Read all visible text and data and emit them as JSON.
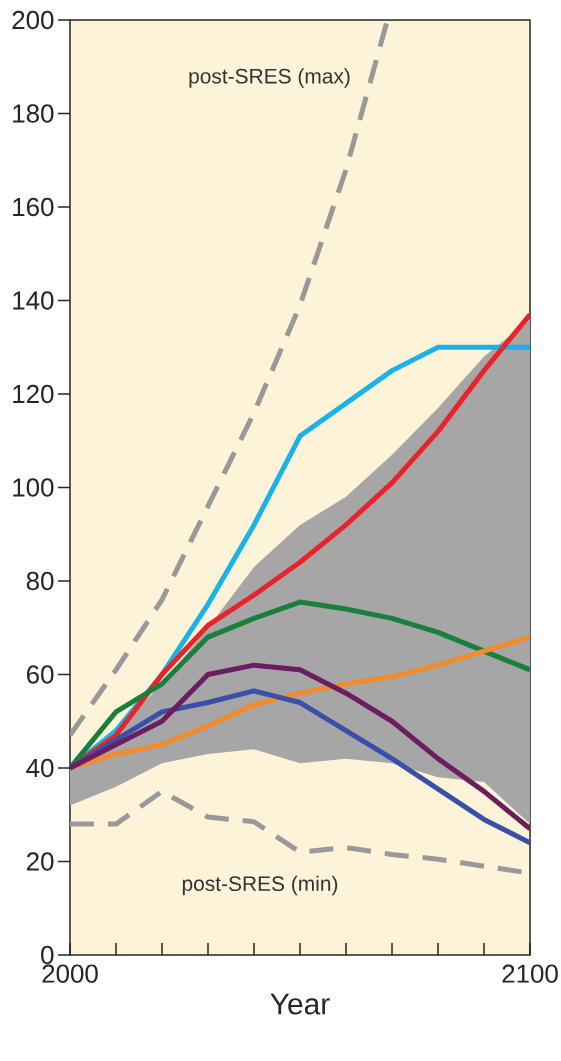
{
  "chart_data": {
    "type": "line",
    "xlabel": "Year",
    "x": [
      2000,
      2010,
      2020,
      2030,
      2040,
      2050,
      2060,
      2070,
      2080,
      2090,
      2100
    ],
    "xlim": [
      2000,
      2100
    ],
    "ylim": [
      0,
      200
    ],
    "xticks": [
      2000,
      {
        "value": 2010,
        "label": null
      },
      {
        "value": 2020,
        "label": null
      },
      {
        "value": 2030,
        "label": null
      },
      {
        "value": 2040,
        "label": null
      },
      {
        "value": 2050,
        "label": null
      },
      {
        "value": 2060,
        "label": null
      },
      {
        "value": 2070,
        "label": null
      },
      {
        "value": 2080,
        "label": null
      },
      {
        "value": 2090,
        "label": null
      },
      2100
    ],
    "yticks": [
      0,
      20,
      40,
      60,
      80,
      100,
      120,
      140,
      160,
      180,
      200
    ],
    "grid": false,
    "marker": "none",
    "series": [
      {
        "type": "area",
        "color": "#a6a6a6",
        "values": [
          null,
          null,
          null,
          null,
          null,
          null,
          null,
          null,
          null,
          null,
          null
        ],
        "lower": [
          32,
          36,
          41,
          43,
          44,
          41,
          42,
          41,
          38,
          37,
          28
        ],
        "upper": [
          40,
          48,
          58,
          70,
          83,
          92,
          98,
          107,
          117,
          128,
          136
        ]
      },
      {
        "name": "post-SRES (max)",
        "color": "#999999",
        "line_style": "dashed",
        "x": [
          2000,
          2010,
          2020,
          2030,
          2040,
          2050,
          2060,
          2069
        ],
        "values": [
          47,
          61,
          76,
          96,
          116,
          139,
          168,
          200
        ]
      },
      {
        "name": "post-SRES (min)",
        "color": "#999999",
        "line_style": "dashed",
        "values": [
          28,
          28,
          35,
          29.5,
          28.5,
          22,
          23,
          21.5,
          20.5,
          19,
          17.5
        ]
      },
      {
        "color": "#1ab2e8",
        "values": [
          40,
          48,
          60,
          75,
          92,
          111,
          118,
          125,
          130,
          130,
          130
        ]
      },
      {
        "color": "#e8242a",
        "values": [
          40,
          47,
          60,
          70.5,
          77,
          84,
          92,
          101,
          112,
          125,
          137
        ]
      },
      {
        "color": "#1a7f3c",
        "values": [
          40,
          52,
          58,
          68,
          72,
          75.5,
          74,
          72,
          69,
          65,
          61
        ]
      },
      {
        "color": "#f28a2e",
        "values": [
          40,
          43,
          45,
          49,
          53.5,
          56,
          58,
          59.5,
          62,
          65,
          68
        ]
      },
      {
        "color": "#3a4fa8",
        "values": [
          40,
          46,
          52,
          54,
          56.5,
          54,
          48,
          42,
          35.5,
          29,
          24
        ]
      },
      {
        "color": "#6a1e5e",
        "values": [
          40,
          45,
          50,
          60,
          62,
          61,
          56,
          50,
          42,
          35,
          27
        ]
      }
    ]
  }
}
